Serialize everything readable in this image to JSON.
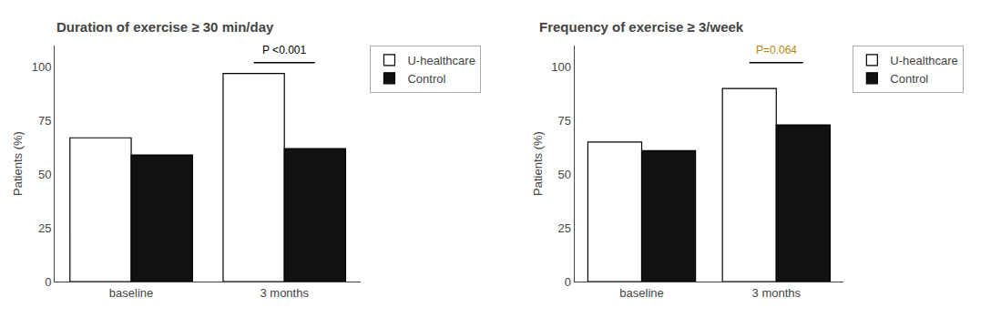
{
  "chart_data": [
    {
      "type": "bar",
      "title": "Duration of exercise ≥ 30 min/day",
      "ylabel": "Patients (%)",
      "categories": [
        "baseline",
        "3 months"
      ],
      "series": [
        {
          "name": "U-healthcare",
          "color": "#ffffff",
          "values": [
            67,
            97
          ]
        },
        {
          "name": "Control",
          "color": "#111111",
          "values": [
            59,
            62
          ]
        }
      ],
      "ylim": [
        0,
        110
      ],
      "yticks": [
        0,
        25,
        50,
        75,
        100
      ],
      "grid": false,
      "legend": "right",
      "annotations": [
        {
          "text": "P <0.001",
          "x": 1,
          "y": 104,
          "bracket_y": 102,
          "color": "#000000"
        }
      ]
    },
    {
      "type": "bar",
      "title": "Frequency of exercise ≥ 3/week",
      "ylabel": "Patients (%)",
      "categories": [
        "baseline",
        "3 months"
      ],
      "series": [
        {
          "name": "U-healthcare",
          "color": "#ffffff",
          "values": [
            65,
            90
          ]
        },
        {
          "name": "Control",
          "color": "#111111",
          "values": [
            61,
            73
          ]
        }
      ],
      "ylim": [
        0,
        110
      ],
      "yticks": [
        0,
        25,
        50,
        75,
        100
      ],
      "grid": false,
      "legend": "right",
      "annotations": [
        {
          "text": "P=0.064",
          "x": 1,
          "y": 104,
          "bracket_y": 102,
          "color": "#b8860b"
        }
      ]
    }
  ]
}
